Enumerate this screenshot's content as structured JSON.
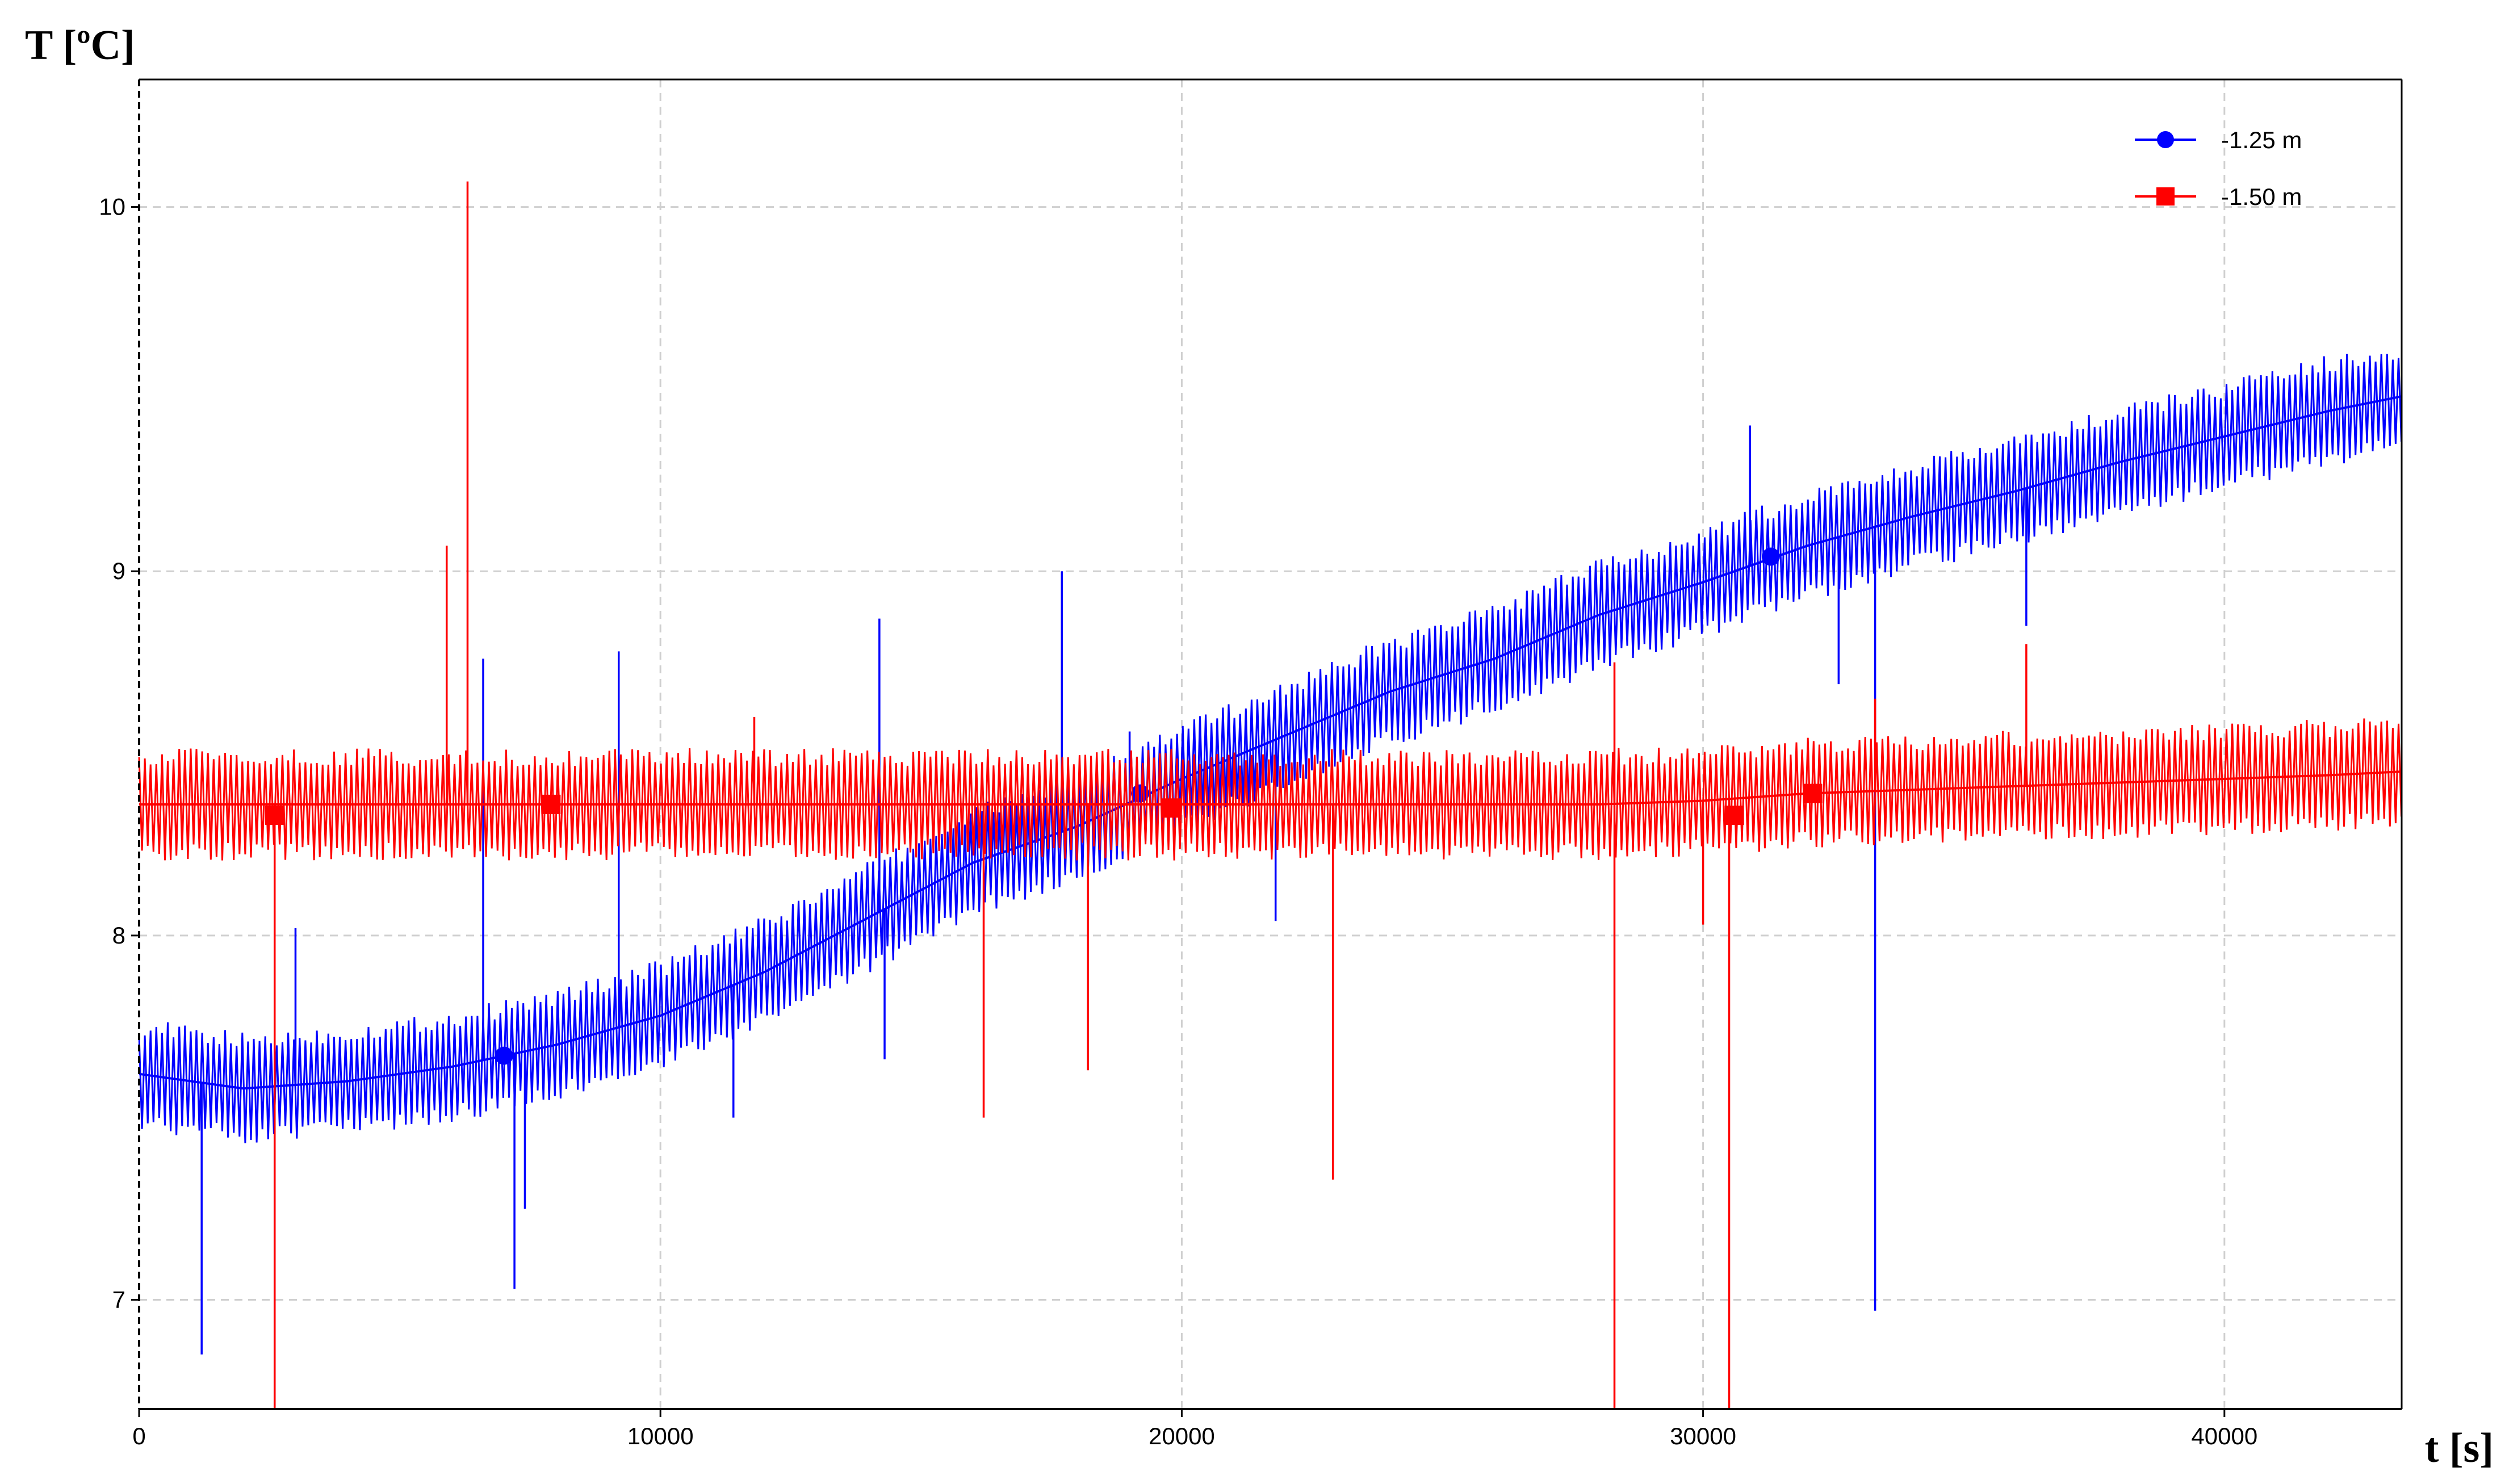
{
  "chart_data": {
    "type": "line",
    "title": "",
    "xlabel": "t [s]",
    "ylabel": "T [ºC]",
    "xlim": [
      0,
      43400
    ],
    "ylim": [
      6.7,
      10.35
    ],
    "x_ticks": [
      0,
      10000,
      20000,
      30000,
      40000
    ],
    "y_ticks": [
      7,
      8,
      9,
      10
    ],
    "x_tick_labels": [
      "0",
      "10000",
      "20000",
      "30000",
      "40000"
    ],
    "y_tick_labels": [
      "7",
      "8",
      "9",
      "10"
    ],
    "grid": true,
    "legend_position": "top-right",
    "series": [
      {
        "name": "-1.25 m",
        "color": "#0000ff",
        "marker": "circle",
        "trend": [
          [
            0,
            7.62
          ],
          [
            2000,
            7.58
          ],
          [
            4000,
            7.6
          ],
          [
            6000,
            7.64
          ],
          [
            8000,
            7.7
          ],
          [
            10000,
            7.78
          ],
          [
            12000,
            7.9
          ],
          [
            14000,
            8.05
          ],
          [
            16000,
            8.2
          ],
          [
            18000,
            8.3
          ],
          [
            20000,
            8.43
          ],
          [
            22000,
            8.55
          ],
          [
            24000,
            8.67
          ],
          [
            26000,
            8.76
          ],
          [
            28000,
            8.88
          ],
          [
            30000,
            8.97
          ],
          [
            32000,
            9.07
          ],
          [
            34000,
            9.15
          ],
          [
            36000,
            9.22
          ],
          [
            38000,
            9.3
          ],
          [
            40000,
            9.37
          ],
          [
            42000,
            9.44
          ],
          [
            43400,
            9.48
          ]
        ],
        "oscillation_amplitude": 0.14,
        "markers": [
          [
            7000,
            7.67
          ],
          [
            19200,
            8.39
          ],
          [
            31300,
            9.04
          ]
        ],
        "spikes": [
          [
            1200,
            6.85
          ],
          [
            2600,
            6.7
          ],
          [
            3000,
            8.02
          ],
          [
            6600,
            8.76
          ],
          [
            7200,
            7.03
          ],
          [
            7400,
            7.25
          ],
          [
            9200,
            8.78
          ],
          [
            11400,
            7.5
          ],
          [
            14200,
            8.87
          ],
          [
            14300,
            7.66
          ],
          [
            17700,
            9.0
          ],
          [
            19000,
            8.56
          ],
          [
            21800,
            8.04
          ],
          [
            30900,
            9.4
          ],
          [
            32600,
            8.69
          ],
          [
            33300,
            6.97
          ],
          [
            36200,
            8.85
          ]
        ]
      },
      {
        "name": "-1.50 m",
        "color": "#ff0000",
        "marker": "square",
        "trend": [
          [
            0,
            8.36
          ],
          [
            4000,
            8.36
          ],
          [
            8000,
            8.36
          ],
          [
            12000,
            8.36
          ],
          [
            16000,
            8.36
          ],
          [
            20000,
            8.36
          ],
          [
            24000,
            8.36
          ],
          [
            28000,
            8.36
          ],
          [
            30000,
            8.37
          ],
          [
            32000,
            8.39
          ],
          [
            34000,
            8.4
          ],
          [
            36000,
            8.41
          ],
          [
            38000,
            8.42
          ],
          [
            40000,
            8.43
          ],
          [
            42000,
            8.44
          ],
          [
            43400,
            8.45
          ]
        ],
        "oscillation_amplitude": 0.14,
        "markers": [
          [
            2600,
            8.33
          ],
          [
            7900,
            8.36
          ],
          [
            19800,
            8.35
          ],
          [
            30600,
            8.33
          ],
          [
            32100,
            8.39
          ]
        ],
        "spikes": [
          [
            2600,
            6.7
          ],
          [
            5900,
            9.07
          ],
          [
            6300,
            10.07
          ],
          [
            11800,
            8.6
          ],
          [
            16200,
            7.5
          ],
          [
            18200,
            7.63
          ],
          [
            22900,
            7.33
          ],
          [
            28300,
            8.75
          ],
          [
            28300,
            6.7
          ],
          [
            30000,
            8.03
          ],
          [
            30500,
            6.7
          ],
          [
            33300,
            8.65
          ],
          [
            36200,
            8.8
          ]
        ]
      }
    ]
  }
}
